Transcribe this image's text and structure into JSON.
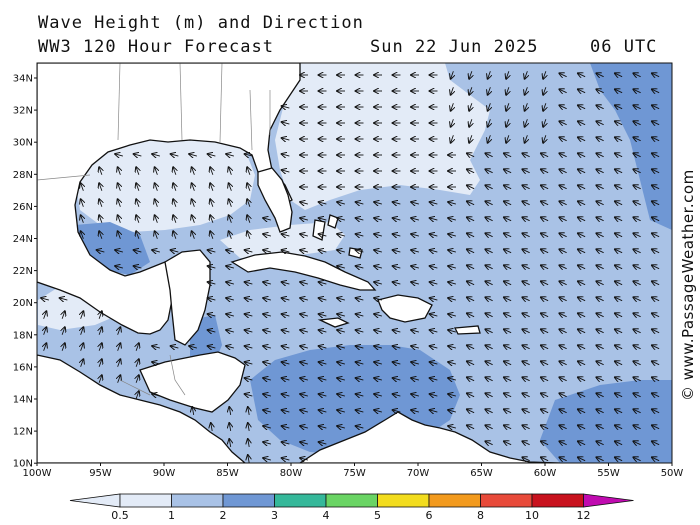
{
  "header": {
    "title_line1": "Wave Height (m) and Direction",
    "title_line2": "WW3 120 Hour Forecast",
    "date": "Sun 22 Jun 2025",
    "time": "06 UTC"
  },
  "credit": "© www.PassageWeather.com",
  "axes": {
    "lat_labels": [
      "34N",
      "32N",
      "30N",
      "28N",
      "26N",
      "24N",
      "22N",
      "20N",
      "18N",
      "16N",
      "14N",
      "12N",
      "10N"
    ],
    "lon_labels": [
      "100W",
      "95W",
      "90W",
      "85W",
      "80W",
      "75W",
      "70W",
      "65W",
      "60W",
      "55W",
      "50W"
    ]
  },
  "colorbar": {
    "labels": [
      "0.5",
      "1",
      "2",
      "3",
      "4",
      "5",
      "6",
      "8",
      "10",
      "12"
    ],
    "colors": [
      "#e3ebf7",
      "#a9c2e6",
      "#6f97d4",
      "#35b89a",
      "#6ad464",
      "#f2dc1e",
      "#f29a1e",
      "#e84a3a",
      "#c8121e",
      "#c00bb0"
    ]
  },
  "palette": {
    "land": "#ffffff",
    "calm": "#e3ebf7",
    "moderate": "#a9c2e6",
    "high": "#6f97d4"
  },
  "map": {
    "lon_range": [
      -100,
      -50
    ],
    "lat_range": [
      10,
      35
    ]
  }
}
